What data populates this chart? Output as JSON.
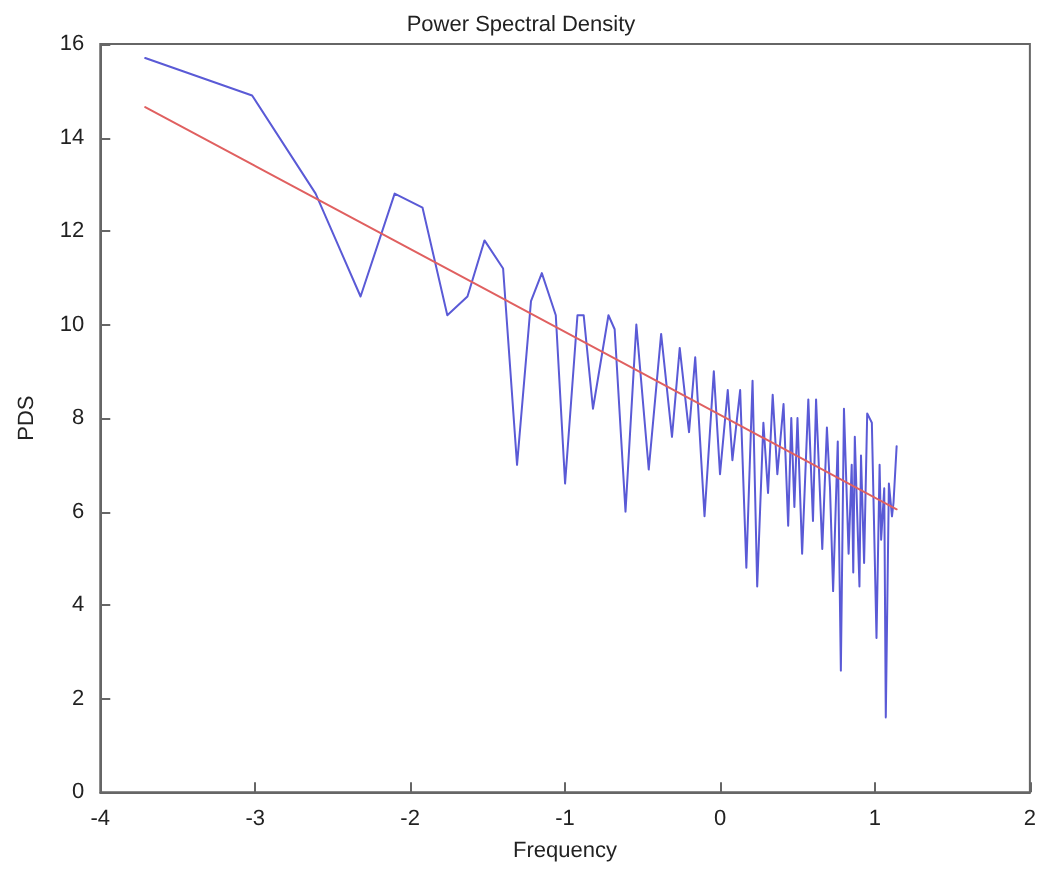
{
  "chart_data": {
    "type": "line",
    "title": "Power Spectral Density",
    "xlabel": "Frequency",
    "ylabel": "PDS",
    "xlim": [
      -4,
      2
    ],
    "xticks": [
      -4,
      -3,
      -2,
      -1,
      0,
      1,
      2
    ],
    "ylim": [
      0,
      16
    ],
    "yticks": [
      0,
      2,
      4,
      6,
      8,
      10,
      12,
      14,
      16
    ],
    "grid": false,
    "marker": "none",
    "line_style": "solid",
    "series": [
      {
        "color": "#5a5ad6",
        "x": [
          -3.71,
          -3.02,
          -2.61,
          -2.32,
          -2.1,
          -1.92,
          -1.76,
          -1.63,
          -1.52,
          -1.4,
          -1.31,
          -1.22,
          -1.15,
          -1.06,
          -1.0,
          -0.92,
          -0.88,
          -0.82,
          -0.72,
          -0.68,
          -0.61,
          -0.54,
          -0.46,
          -0.38,
          -0.31,
          -0.26,
          -0.2,
          -0.16,
          -0.1,
          -0.04,
          0.0,
          0.05,
          0.08,
          0.13,
          0.17,
          0.21,
          0.24,
          0.28,
          0.31,
          0.34,
          0.37,
          0.41,
          0.44,
          0.46,
          0.48,
          0.5,
          0.53,
          0.57,
          0.6,
          0.62,
          0.66,
          0.69,
          0.71,
          0.73,
          0.76,
          0.78,
          0.8,
          0.83,
          0.85,
          0.86,
          0.87,
          0.9,
          0.91,
          0.93,
          0.95,
          0.98,
          1.01,
          1.03,
          1.04,
          1.06,
          1.07,
          1.09,
          1.11,
          1.12,
          1.14
        ],
        "values": [
          15.7,
          14.9,
          12.8,
          10.6,
          12.8,
          12.5,
          10.2,
          10.6,
          11.8,
          11.2,
          7.0,
          10.5,
          11.1,
          10.2,
          6.6,
          10.2,
          10.2,
          8.2,
          10.2,
          9.9,
          6.0,
          10.0,
          6.9,
          9.8,
          7.6,
          9.5,
          7.7,
          9.3,
          5.9,
          9.0,
          6.8,
          8.6,
          7.1,
          8.6,
          4.8,
          8.8,
          4.4,
          7.9,
          6.4,
          8.5,
          6.8,
          8.3,
          5.7,
          8.0,
          6.1,
          8.0,
          5.1,
          8.4,
          5.8,
          8.4,
          5.2,
          7.8,
          6.5,
          4.3,
          7.5,
          2.6,
          8.2,
          5.1,
          7.0,
          4.7,
          7.6,
          4.4,
          7.2,
          4.9,
          8.1,
          7.9,
          3.3,
          7.0,
          5.4,
          6.5,
          1.6,
          6.6,
          5.9,
          6.2,
          7.4
        ]
      },
      {
        "color": "#e06060",
        "x": [
          -3.71,
          1.14
        ],
        "values": [
          14.65,
          6.05
        ]
      }
    ]
  }
}
